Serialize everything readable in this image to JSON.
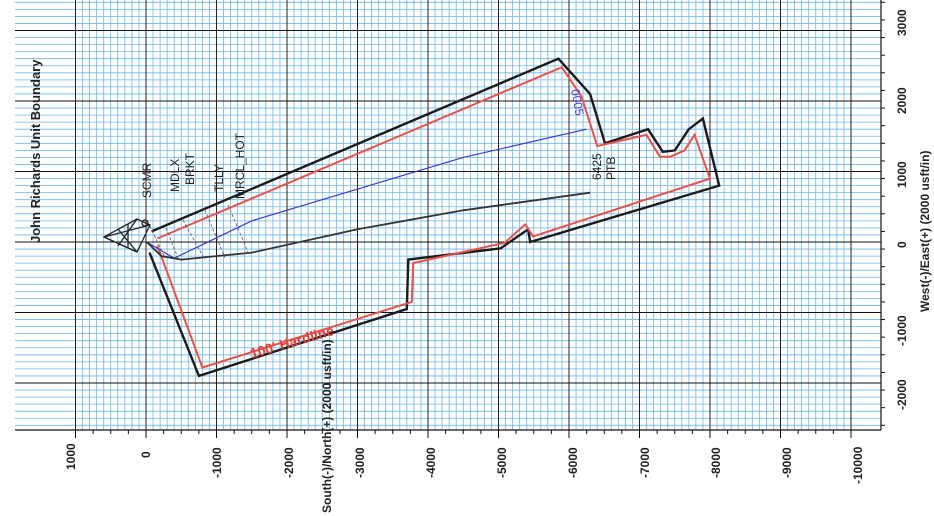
{
  "title": "John Richards Unit Boundary",
  "axes": {
    "x_label": "South(-)/North(+) (2000 usft/in)",
    "y_label": "West(-)/East(+) (2000 usft/in)",
    "x_ticks": [
      "1000",
      "0",
      "-1000",
      "-2000",
      "-3000",
      "-4000",
      "-5000",
      "-6000",
      "-7000",
      "-8000",
      "-9000",
      "-10000"
    ],
    "y_ticks": [
      "3000",
      "2000",
      "1000",
      "0",
      "-1000",
      "-2000"
    ]
  },
  "formation_labels": [
    "SCMR",
    "MDLX",
    "BRKT",
    "TLLY",
    "MRCL_HOT"
  ],
  "well_labels": {
    "depth": "6425",
    "target": "PTB",
    "section": "0005"
  },
  "hardline_label": "100' Hardline",
  "colors": {
    "grid_minor": "#6fb6e8",
    "grid_major": "#111111",
    "boundary": "#1a1a1a",
    "hardline": "#e8524a",
    "wellpath": "#3a3acf",
    "actual_path": "#333333"
  },
  "chart_data": {
    "type": "scatter",
    "x_axis": {
      "label": "South(-)/North(+) (2000 usft/in)",
      "range": [
        1000,
        -10000
      ]
    },
    "y_axis": {
      "label": "West(-)/East(+) (2000 usft/in)",
      "range": [
        -2500,
        3000
      ]
    },
    "grid": true,
    "series": [
      {
        "role": "unit boundary",
        "points": [
          [
            -50,
            -150
          ],
          [
            -750,
            -1900
          ],
          [
            -3700,
            -950
          ],
          [
            -3720,
            -250
          ],
          [
            -5030,
            -90
          ],
          [
            -5420,
            180
          ],
          [
            -5450,
            0
          ],
          [
            -8130,
            800
          ],
          [
            -7900,
            1750
          ],
          [
            -7700,
            1600
          ],
          [
            -7500,
            1300
          ],
          [
            -7330,
            1280
          ],
          [
            -7120,
            1600
          ],
          [
            -6510,
            1400
          ],
          [
            -6300,
            2100
          ],
          [
            -5850,
            2600
          ],
          [
            -80,
            150
          ]
        ]
      },
      {
        "role": "hardline",
        "points": [
          [
            -160,
            -50
          ],
          [
            -800,
            -1780
          ],
          [
            -3770,
            -850
          ],
          [
            -3790,
            -300
          ],
          [
            -5090,
            -10
          ],
          [
            -5380,
            250
          ],
          [
            -5490,
            80
          ],
          [
            -8000,
            900
          ],
          [
            -7780,
            1520
          ],
          [
            -7640,
            1300
          ],
          [
            -7440,
            1210
          ],
          [
            -7290,
            1210
          ],
          [
            -7100,
            1520
          ],
          [
            -6400,
            1360
          ],
          [
            -6180,
            2060
          ],
          [
            -5900,
            2480
          ],
          [
            -160,
            50
          ]
        ]
      },
      {
        "role": "planned path",
        "points": [
          [
            -10,
            0
          ],
          [
            -400,
            -230
          ],
          [
            -1500,
            300
          ],
          [
            -3000,
            750
          ],
          [
            -4500,
            1200
          ],
          [
            -6250,
            1600
          ]
        ]
      },
      {
        "role": "actual path",
        "points": [
          [
            -10,
            0
          ],
          [
            -220,
            -200
          ],
          [
            -500,
            -250
          ],
          [
            -1500,
            -150
          ],
          [
            -3000,
            180
          ],
          [
            -4500,
            450
          ],
          [
            -6300,
            700
          ]
        ]
      }
    ]
  }
}
